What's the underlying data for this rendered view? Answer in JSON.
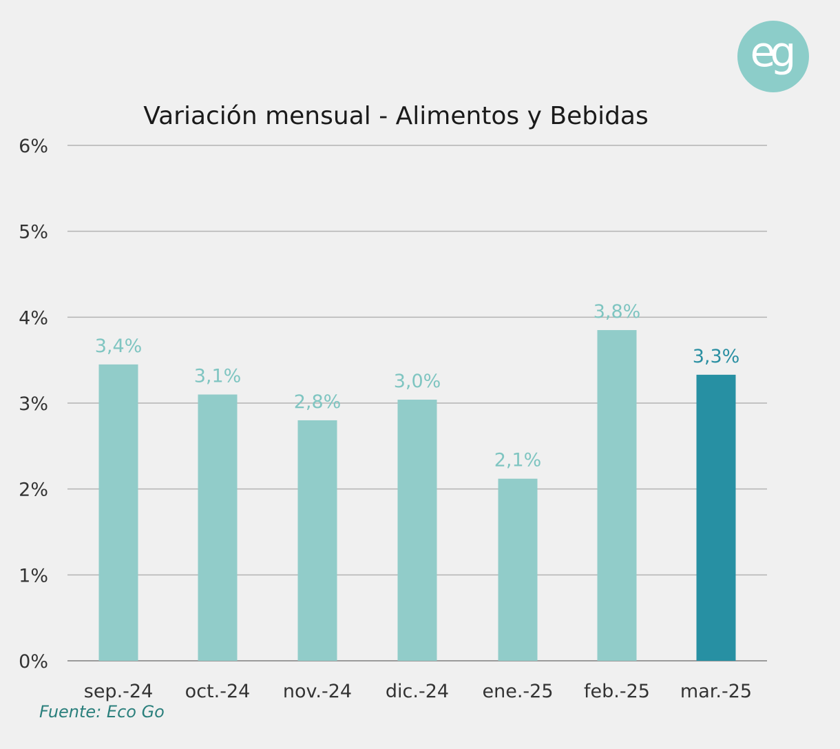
{
  "logo": {
    "text": "eg",
    "color": "#8ccdc9"
  },
  "source": "Fuente: Eco Go",
  "chart_data": {
    "type": "bar",
    "title": "Variación mensual - Alimentos y Bebidas",
    "xlabel": "",
    "ylabel": "",
    "categories": [
      "sep.-24",
      "oct.-24",
      "nov.-24",
      "dic.-24",
      "ene.-25",
      "feb.-25",
      "mar.-25"
    ],
    "values": [
      3.45,
      3.1,
      2.8,
      3.04,
      2.12,
      3.85,
      3.33
    ],
    "data_labels": [
      "3,4%",
      "3,1%",
      "2,8%",
      "3,0%",
      "2,1%",
      "3,8%",
      "3,3%"
    ],
    "ylim": [
      0,
      6
    ],
    "yticks": [
      0,
      1,
      2,
      3,
      4,
      5,
      6
    ],
    "ytick_labels": [
      "0%",
      "1%",
      "2%",
      "3%",
      "4%",
      "5%",
      "6%"
    ],
    "grid": true,
    "legend": "none",
    "colors": {
      "bar": "#91ccc9",
      "highlight_bar": "#2790a3",
      "label": "#7fc5c1",
      "highlight_label": "#2a8fa2",
      "grid": "#b3b3b3"
    },
    "highlight_index": 6
  }
}
